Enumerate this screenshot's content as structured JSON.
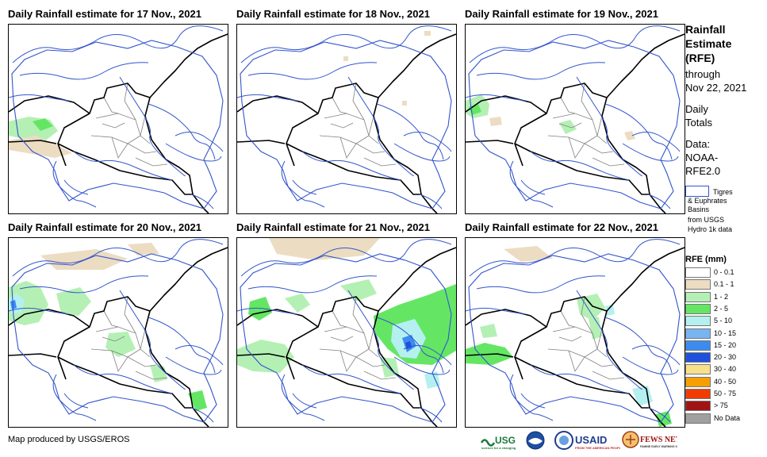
{
  "panels": [
    {
      "title": "Daily Rainfall estimate for 17 Nov., 2021"
    },
    {
      "title": "Daily Rainfall estimate for 18 Nov., 2021"
    },
    {
      "title": "Daily Rainfall estimate for 19 Nov., 2021"
    },
    {
      "title": "Daily Rainfall estimate for 20 Nov., 2021"
    },
    {
      "title": "Daily Rainfall estimate for 21 Nov., 2021"
    },
    {
      "title": "Daily Rainfall estimate for 22 Nov., 2021"
    }
  ],
  "sidebar": {
    "title_lines": [
      "Rainfall",
      "Estimate",
      "(RFE)"
    ],
    "through": "through",
    "date": "Nov 22, 2021",
    "daily_lines": [
      "Daily",
      "Totals"
    ],
    "data_lines": [
      "Data:",
      "NOAA-",
      "RFE2.0"
    ],
    "basin_lines": [
      "Tigres",
      "& Euphrates",
      "Basins",
      "from USGS",
      "Hydro 1k data"
    ]
  },
  "legend": {
    "title": "RFE (mm)",
    "items": [
      {
        "label": "0 - 0.1",
        "color": "#ffffff"
      },
      {
        "label": "0.1 - 1",
        "color": "#ecdcc2"
      },
      {
        "label": "1 - 2",
        "color": "#b4f0b4"
      },
      {
        "label": "2 - 5",
        "color": "#64e664"
      },
      {
        "label": "5 - 10",
        "color": "#b4f0f0"
      },
      {
        "label": "10 - 15",
        "color": "#78b4f0"
      },
      {
        "label": "15 - 20",
        "color": "#3c8cf0"
      },
      {
        "label": "20 - 30",
        "color": "#1e50dc"
      },
      {
        "label": "30 - 40",
        "color": "#f5e18c"
      },
      {
        "label": "40 - 50",
        "color": "#f5a000"
      },
      {
        "label": "50 - 75",
        "color": "#f03c00"
      },
      {
        "label": "> 75",
        "color": "#a01414"
      },
      {
        "label": "No Data",
        "color": "#a0a0a0"
      }
    ]
  },
  "credit": "Map produced by USGS/EROS",
  "logos": {
    "usgs": "USGS",
    "usaid": "USAID",
    "fewsnet": "FEWS NET"
  },
  "colors": {
    "river": "#3355cc",
    "border": "#000000",
    "admin": "#808080"
  }
}
